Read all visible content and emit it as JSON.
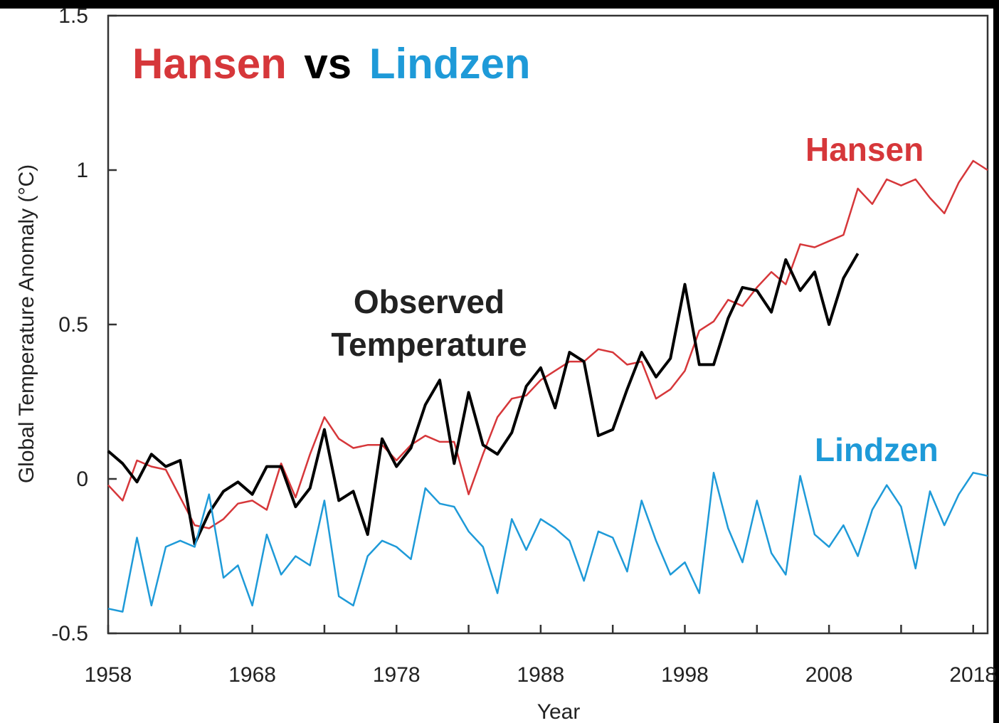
{
  "chart_data": {
    "type": "line",
    "title_parts": [
      {
        "text": "Hansen",
        "color": "#d6373a"
      },
      {
        "text": "vs",
        "color": "#000000"
      },
      {
        "text": "Lindzen",
        "color": "#1e9ad8"
      }
    ],
    "x_label": "Year",
    "y_label": "Global Temperature Anomaly (°C)",
    "annotations": [
      {
        "text": "Hansen",
        "color": "#d6373a"
      },
      {
        "text": "Observed",
        "color": "#222222"
      },
      {
        "text": "Temperature",
        "color": "#222222"
      },
      {
        "text": "Lindzen",
        "color": "#1e9ad8"
      }
    ],
    "x": [
      1958,
      1959,
      1960,
      1961,
      1962,
      1963,
      1964,
      1965,
      1966,
      1967,
      1968,
      1969,
      1970,
      1971,
      1972,
      1973,
      1974,
      1975,
      1976,
      1977,
      1978,
      1979,
      1980,
      1981,
      1982,
      1983,
      1984,
      1985,
      1986,
      1987,
      1988,
      1989,
      1990,
      1991,
      1992,
      1993,
      1994,
      1995,
      1996,
      1997,
      1998,
      1999,
      2000,
      2001,
      2002,
      2003,
      2004,
      2005,
      2006,
      2007,
      2008,
      2009,
      2010,
      2011,
      2012,
      2013,
      2014,
      2015,
      2016,
      2017,
      2018,
      2019
    ],
    "series": [
      {
        "name": "Hansen",
        "color": "#d6373a",
        "width": 2.5,
        "values": [
          -0.02,
          -0.07,
          0.06,
          0.04,
          0.03,
          -0.06,
          -0.15,
          -0.16,
          -0.13,
          -0.08,
          -0.07,
          -0.1,
          0.05,
          -0.06,
          0.08,
          0.2,
          0.13,
          0.1,
          0.11,
          0.11,
          0.06,
          0.11,
          0.14,
          0.12,
          0.12,
          -0.05,
          0.08,
          0.2,
          0.26,
          0.27,
          0.32,
          0.35,
          0.38,
          0.38,
          0.42,
          0.41,
          0.37,
          0.38,
          0.26,
          0.29,
          0.35,
          0.48,
          0.51,
          0.58,
          0.56,
          0.62,
          0.67,
          0.63,
          0.76,
          0.75,
          0.77,
          0.79,
          0.94,
          0.89,
          0.97,
          0.95,
          0.97,
          0.91,
          0.86,
          0.96,
          1.03,
          1.0
        ]
      },
      {
        "name": "Observed Temperature",
        "color": "#000000",
        "width": 4,
        "values": [
          0.09,
          0.05,
          -0.01,
          0.08,
          0.04,
          0.06,
          -0.21,
          -0.11,
          -0.04,
          -0.01,
          -0.05,
          0.04,
          0.04,
          -0.09,
          -0.03,
          0.16,
          -0.07,
          -0.04,
          -0.18,
          0.13,
          0.04,
          0.1,
          0.24,
          0.32,
          0.05,
          0.28,
          0.11,
          0.08,
          0.15,
          0.3,
          0.36,
          0.23,
          0.41,
          0.38,
          0.14,
          0.16,
          0.29,
          0.41,
          0.33,
          0.39,
          0.63,
          0.37,
          0.37,
          0.52,
          0.62,
          0.61,
          0.54,
          0.71,
          0.61,
          0.67,
          0.5,
          0.65,
          0.73,
          null,
          null,
          null,
          null,
          null,
          null,
          null,
          null,
          null
        ]
      },
      {
        "name": "Lindzen",
        "color": "#1e9ad8",
        "width": 2.5,
        "values": [
          -0.42,
          -0.43,
          -0.19,
          -0.41,
          -0.22,
          -0.2,
          -0.22,
          -0.05,
          -0.32,
          -0.28,
          -0.41,
          -0.18,
          -0.31,
          -0.25,
          -0.28,
          -0.07,
          -0.38,
          -0.41,
          -0.25,
          -0.2,
          -0.22,
          -0.26,
          -0.03,
          -0.08,
          -0.09,
          -0.17,
          -0.22,
          -0.37,
          -0.13,
          -0.23,
          -0.13,
          -0.16,
          -0.2,
          -0.33,
          -0.17,
          -0.19,
          -0.3,
          -0.07,
          -0.2,
          -0.31,
          -0.27,
          -0.37,
          0.02,
          -0.16,
          -0.27,
          -0.07,
          -0.24,
          -0.31,
          0.01,
          -0.18,
          -0.22,
          -0.15,
          -0.25,
          -0.1,
          -0.02,
          -0.09,
          -0.29,
          -0.04,
          -0.15,
          -0.05,
          0.02,
          0.01
        ]
      }
    ],
    "xlim": [
      1958,
      2019
    ],
    "ylim": [
      -0.5,
      1.5
    ],
    "xticks": [
      1958,
      1968,
      1978,
      1988,
      1998,
      2008,
      2018
    ],
    "xminorticks": [
      1963,
      1973,
      1983,
      1993,
      2003,
      2013
    ],
    "yticks": [
      -0.5,
      0,
      0.5,
      1,
      1.5
    ],
    "grid": false
  }
}
